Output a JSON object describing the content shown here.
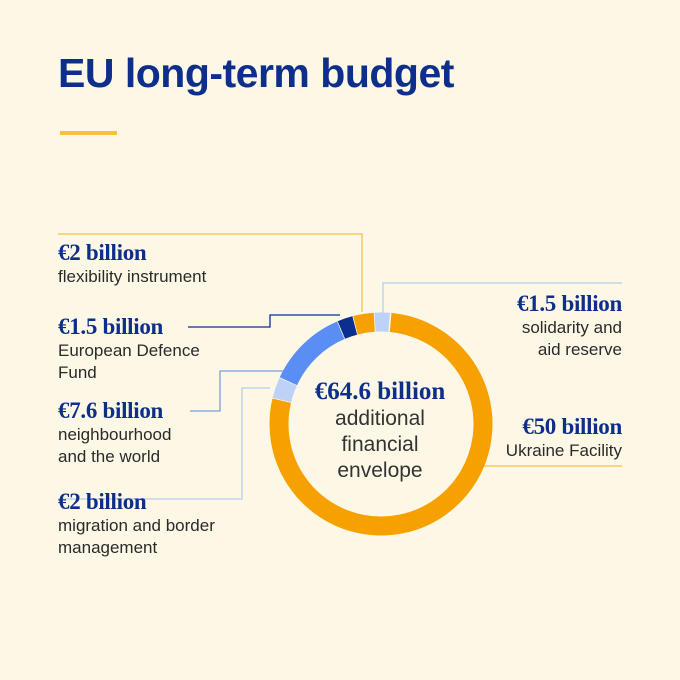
{
  "title": "EU long-term budget",
  "colors": {
    "background": "#fdf8e6",
    "title": "#0e2e8c",
    "title_rule": "#f5c23a",
    "ukraine": "#f7a100",
    "flexibility": "#f7a100",
    "defence": "#0b2f8f",
    "neighbourhood": "#5a8ef5",
    "light_blue": "#bcd3f7",
    "leader_yellow": "#f5c23a",
    "leader_blue": "#7a9ee0",
    "leader_light": "#b9cde8"
  },
  "chart_data": {
    "type": "pie",
    "variant": "donut",
    "center": {
      "value": "€64.6 billion",
      "lines": [
        "additional",
        "financial",
        "envelope"
      ]
    },
    "series": [
      {
        "value": 50,
        "value_label": "€50 billion",
        "label": "Ukraine Facility",
        "color": "#f7a100"
      },
      {
        "value": 2,
        "value_label": "€2 billion",
        "label": "migration and border management",
        "color": "#bcd3f7"
      },
      {
        "value": 7.6,
        "value_label": "€7.6 billion",
        "label": "neighbourhood and the world",
        "color": "#5a8ef5"
      },
      {
        "value": 1.5,
        "value_label": "€1.5 billion",
        "label": "European Defence Fund",
        "color": "#0b2f8f"
      },
      {
        "value": 2,
        "value_label": "€2 billion",
        "label": "flexibility instrument",
        "color": "#f7a100"
      },
      {
        "value": 1.5,
        "value_label": "€1.5 billion",
        "label": "solidarity and aid reserve",
        "color": "#bcd3f7"
      }
    ]
  },
  "labels": {
    "flexibility": {
      "value": "€2 billion",
      "lines": [
        "flexibility instrument"
      ]
    },
    "defence": {
      "value": "€1.5 billion",
      "lines": [
        "European Defence",
        "Fund"
      ]
    },
    "neighbourhood": {
      "value": "€7.6 billion",
      "lines": [
        "neighbourhood",
        "and the world"
      ]
    },
    "migration": {
      "value": "€2 billion",
      "lines": [
        "migration and border",
        "management"
      ]
    },
    "solidarity": {
      "value": "€1.5 billion",
      "lines": [
        "solidarity and",
        "aid reserve"
      ]
    },
    "ukraine": {
      "value": "€50 billion",
      "lines": [
        "Ukraine Facility"
      ]
    }
  }
}
